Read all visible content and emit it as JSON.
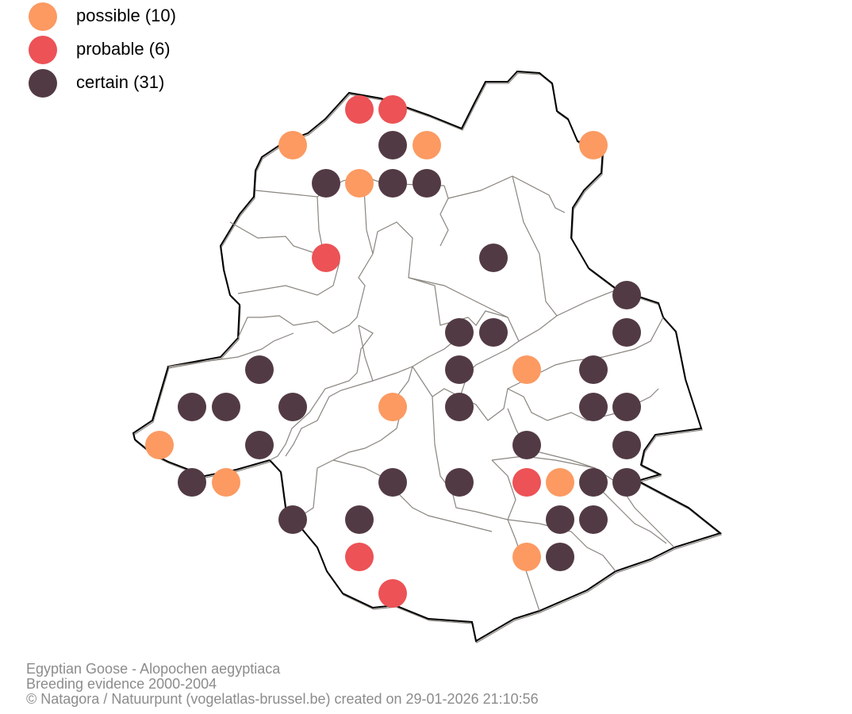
{
  "legend": {
    "items": [
      {
        "key": "possible",
        "label": "possible (10)",
        "color": "#fc9a62"
      },
      {
        "key": "probable",
        "label": "probable (6)",
        "color": "#ec5256"
      },
      {
        "key": "certain",
        "label": "certain (31)",
        "color": "#523a44"
      }
    ]
  },
  "caption": {
    "species": "Egyptian Goose - Alopochen aegyptiaca",
    "period": "Breeding evidence 2000-2004",
    "credit": "© Natagora / Natuurpunt (vogelatlas-brussel.be) created on 29-01-2026 21:10:56"
  },
  "colors": {
    "boundary": "#000000",
    "municipality_lines": "#8a857f"
  }
}
